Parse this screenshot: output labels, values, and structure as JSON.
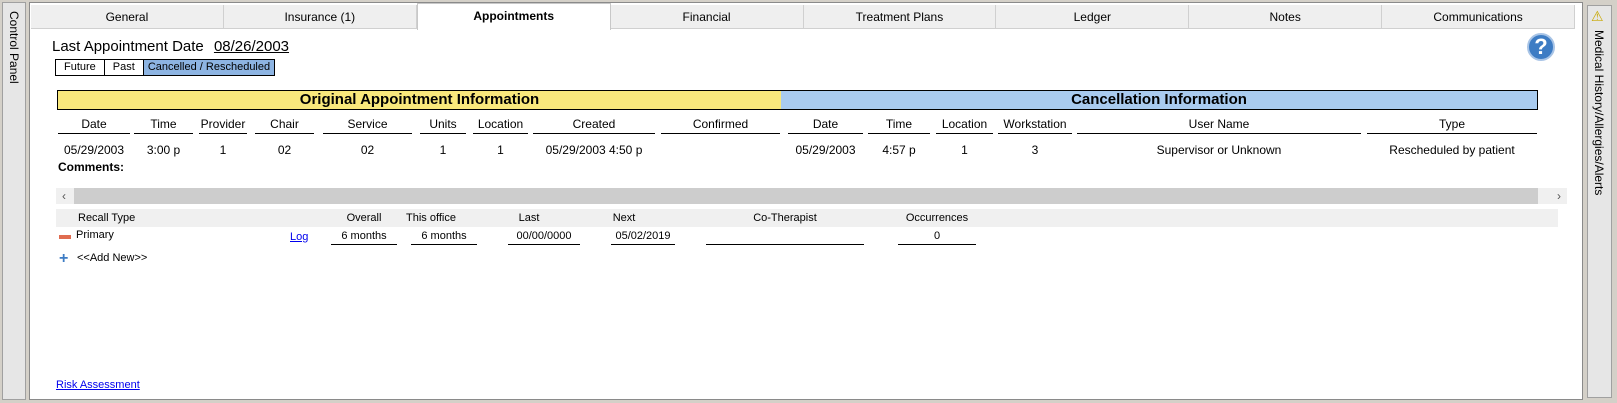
{
  "control_panel": {
    "label": "Control Panel"
  },
  "tabs": [
    "General",
    "Insurance (1)",
    "Appointments",
    "Financial",
    "Treatment Plans",
    "Ledger",
    "Notes",
    "Communications"
  ],
  "active_tab": "Appointments",
  "last_appointment": {
    "label": "Last Appointment Date",
    "value": "08/26/2003"
  },
  "filters": [
    "Future",
    "Past",
    "Cancelled / Rescheduled"
  ],
  "selected_filter": "Cancelled / Rescheduled",
  "colors": {
    "original_header": "#f9e87c",
    "cancel_header": "#a9cbef",
    "selected_filter": "#8db4e2",
    "help": "#3d7cc4"
  },
  "original": {
    "title": "Original Appointment Information",
    "columns": [
      "Date",
      "Time",
      "Provider",
      "Chair",
      "Service",
      "Units",
      "Location",
      "Created",
      "Confirmed"
    ],
    "values": [
      "05/29/2003",
      "3:00 p",
      "1",
      "02",
      "02",
      "1",
      "1",
      "05/29/2003 4:50 p",
      ""
    ]
  },
  "cancellation": {
    "title": "Cancellation Information",
    "columns": [
      "Date",
      "Time",
      "Location",
      "Workstation",
      "User Name",
      "Type"
    ],
    "values": [
      "05/29/2003",
      "4:57 p",
      "1",
      "3",
      "Supervisor or Unknown",
      "Rescheduled by patient"
    ]
  },
  "comments_label": "Comments:",
  "recall": {
    "columns": [
      "Recall Type",
      "Overall",
      "This office",
      "Last",
      "Next",
      "Co-Therapist",
      "Occurrences"
    ],
    "rows": [
      {
        "type": "Primary",
        "log": "Log",
        "overall": "6   months",
        "this_office": "6   months",
        "last": "00/00/0000",
        "next": "05/02/2019",
        "co_therapist": "",
        "occurrences": "0"
      }
    ],
    "add_new": "<<Add New>>"
  },
  "risk_assessment": "Risk Assessment",
  "right_panel": {
    "label": "Medical History/Allergies/Alerts"
  }
}
